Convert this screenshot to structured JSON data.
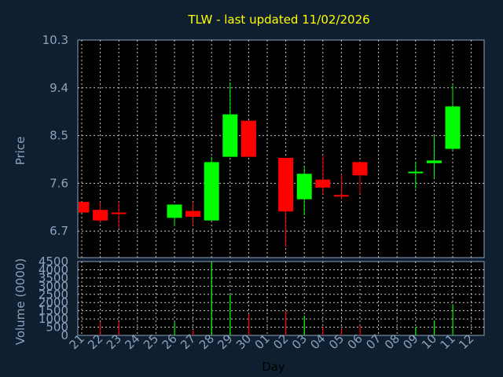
{
  "chart_data": [
    {
      "type": "candlestick",
      "title": "TLW - last updated 11/02/2026",
      "ylabel": "Price",
      "ylim": [
        6.2,
        10.3
      ],
      "yticks": [
        "10.3",
        "9.4",
        "8.5",
        "7.6",
        "6.7"
      ],
      "x": [
        "21",
        "22",
        "23",
        "24",
        "25",
        "26",
        "27",
        "28",
        "29",
        "30",
        "01",
        "02",
        "03",
        "04",
        "05",
        "06",
        "07",
        "08",
        "09",
        "10",
        "11",
        "12"
      ],
      "candles": [
        {
          "day": "21",
          "open": 7.25,
          "close": 7.05,
          "high": 7.25,
          "low": 7.05
        },
        {
          "day": "22",
          "open": 7.1,
          "close": 6.9,
          "high": 7.25,
          "low": 6.85
        },
        {
          "day": "23",
          "open": 7.05,
          "close": 7.02,
          "high": 7.25,
          "low": 6.75
        },
        {
          "day": "26",
          "open": 6.95,
          "close": 7.2,
          "high": 7.2,
          "low": 6.8
        },
        {
          "day": "27",
          "open": 7.08,
          "close": 6.97,
          "high": 7.25,
          "low": 6.8
        },
        {
          "day": "28",
          "open": 6.9,
          "close": 8.0,
          "high": 8.1,
          "low": 6.9
        },
        {
          "day": "29",
          "open": 8.1,
          "close": 8.9,
          "high": 9.5,
          "low": 8.1
        },
        {
          "day": "30",
          "open": 8.78,
          "close": 8.1,
          "high": 8.78,
          "low": 8.1
        },
        {
          "day": "02",
          "open": 8.08,
          "close": 7.07,
          "high": 8.08,
          "low": 6.4
        },
        {
          "day": "03",
          "open": 7.3,
          "close": 7.78,
          "high": 7.92,
          "low": 7.0
        },
        {
          "day": "04",
          "open": 7.67,
          "close": 7.52,
          "high": 8.12,
          "low": 7.4
        },
        {
          "day": "05",
          "open": 7.38,
          "close": 7.35,
          "high": 7.77,
          "low": 7.3
        },
        {
          "day": "06",
          "open": 8.0,
          "close": 7.75,
          "high": 8.0,
          "low": 7.4
        },
        {
          "day": "09",
          "open": 7.8,
          "close": 7.82,
          "high": 8.0,
          "low": 7.5
        },
        {
          "day": "10",
          "open": 7.98,
          "close": 8.03,
          "high": 8.5,
          "low": 7.7
        },
        {
          "day": "11",
          "open": 8.25,
          "close": 9.05,
          "high": 9.45,
          "low": 8.22
        }
      ],
      "up_color": "#00ff00",
      "down_color": "#ff0000",
      "grid": true
    },
    {
      "type": "bar",
      "ylabel": "Volume (0000)",
      "xlabel": "Day",
      "ylim": [
        0,
        4500
      ],
      "yticks": [
        "4500",
        "4000",
        "3500",
        "3000",
        "2500",
        "2000",
        "1500",
        "1000",
        "500",
        "0"
      ],
      "x": [
        "21",
        "22",
        "23",
        "24",
        "25",
        "26",
        "27",
        "28",
        "29",
        "30",
        "01",
        "02",
        "03",
        "04",
        "05",
        "06",
        "07",
        "08",
        "09",
        "10",
        "11",
        "12"
      ],
      "bars": [
        {
          "day": "21",
          "value": 0,
          "color": "#ff0000"
        },
        {
          "day": "22",
          "value": 800,
          "color": "#ff0000"
        },
        {
          "day": "23",
          "value": 800,
          "color": "#ff0000"
        },
        {
          "day": "26",
          "value": 800,
          "color": "#00ff00"
        },
        {
          "day": "27",
          "value": 300,
          "color": "#ff0000"
        },
        {
          "day": "28",
          "value": 4500,
          "color": "#00ff00"
        },
        {
          "day": "29",
          "value": 2500,
          "color": "#00ff00"
        },
        {
          "day": "30",
          "value": 1300,
          "color": "#ff0000"
        },
        {
          "day": "02",
          "value": 1500,
          "color": "#ff0000"
        },
        {
          "day": "03",
          "value": 1200,
          "color": "#00ff00"
        },
        {
          "day": "04",
          "value": 500,
          "color": "#ff0000"
        },
        {
          "day": "05",
          "value": 400,
          "color": "#ff0000"
        },
        {
          "day": "06",
          "value": 600,
          "color": "#ff0000"
        },
        {
          "day": "09",
          "value": 500,
          "color": "#00ff00"
        },
        {
          "day": "10",
          "value": 900,
          "color": "#00ff00"
        },
        {
          "day": "11",
          "value": 1900,
          "color": "#00ff00"
        }
      ],
      "grid": true
    }
  ]
}
